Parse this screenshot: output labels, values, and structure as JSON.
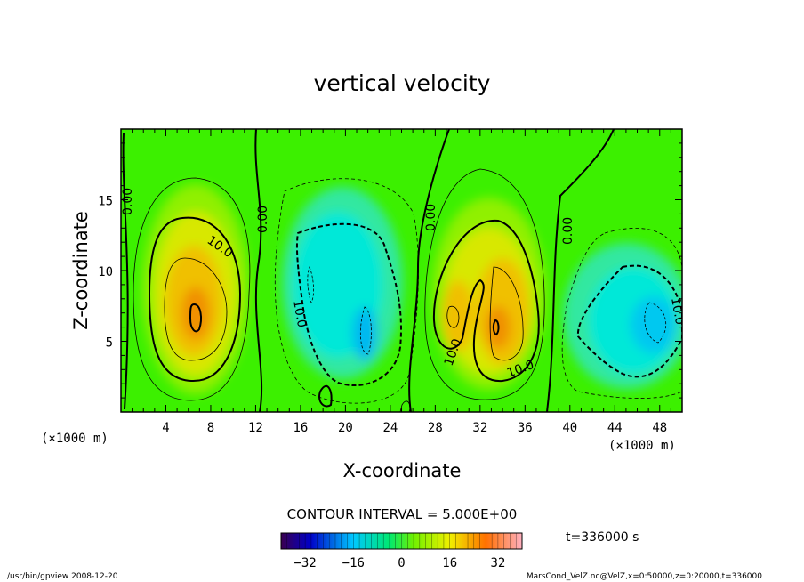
{
  "chart_data": {
    "type": "heatmap",
    "title": "vertical velocity",
    "xlabel": "X-coordinate",
    "ylabel": "Z-coordinate",
    "x_unit_left": "(×1000 m)",
    "x_unit_right": "(×1000 m)",
    "xlim": [
      0,
      50
    ],
    "ylim": [
      0,
      20
    ],
    "x_ticks": [
      "4",
      "8",
      "12",
      "16",
      "20",
      "24",
      "28",
      "32",
      "36",
      "40",
      "44",
      "48"
    ],
    "x_tick_values": [
      4,
      8,
      12,
      16,
      20,
      24,
      28,
      32,
      36,
      40,
      44,
      48
    ],
    "y_ticks": [
      "5",
      "10",
      "15"
    ],
    "y_tick_values": [
      5,
      10,
      15
    ],
    "contour_interval_text": "CONTOUR INTERVAL = 5.000E+00",
    "contour_labels": [
      "0.00",
      "0.00",
      "0.00",
      "0.00",
      "10.0",
      "10.0",
      "10.0",
      "10.0",
      "10.0",
      "10.0"
    ],
    "colorbar": {
      "range": [
        -40,
        40
      ],
      "tick_labels": [
        "−32",
        "−16",
        "0",
        "16",
        "32"
      ],
      "tick_values": [
        -32,
        -16,
        0,
        16,
        32
      ]
    },
    "time_text": "t=336000 s",
    "colors": {
      "background_field": "#3cf000",
      "updraft_peak": "#e8a000",
      "downdraft_peak": "#00d8e8"
    }
  },
  "footer": {
    "left": "/usr/bin/gpview  2008-12-20",
    "right": "MarsCond_VelZ.nc@VelZ,x=0:50000,z=0:20000,t=336000"
  }
}
